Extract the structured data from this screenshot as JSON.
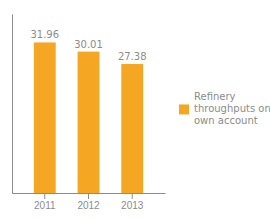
{
  "chart_data": {
    "type": "bar",
    "categories": [
      "2011",
      "2012",
      "2013"
    ],
    "series": [
      {
        "name": "Refinery\nthroughputs on\nown account",
        "color": "#F5A623",
        "values": [
          31.96,
          30.01,
          27.38
        ]
      }
    ],
    "ylim": [
      0,
      38
    ],
    "data_labels": true,
    "tick_labels": "x",
    "legend": "right"
  }
}
